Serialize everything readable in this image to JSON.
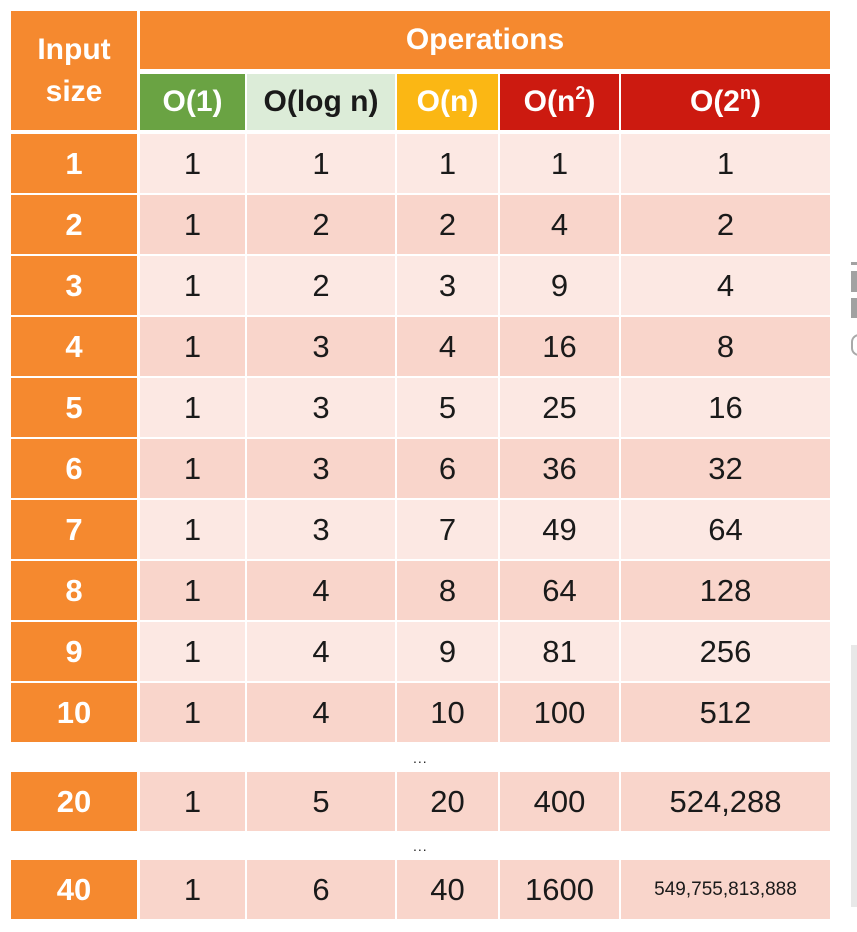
{
  "header": {
    "input_size_line1": "Input",
    "input_size_line2": "size",
    "operations": "Operations",
    "columns": [
      {
        "base": "O(1)",
        "sup": "",
        "tail": "",
        "bg": "#6aa343",
        "fg": "#ffffff"
      },
      {
        "base": "O(log n)",
        "sup": "",
        "tail": "",
        "bg": "#dcecd8",
        "fg": "#1a1a1a"
      },
      {
        "base": "O(n)",
        "sup": "",
        "tail": "",
        "bg": "#fbb714",
        "fg": "#ffffff"
      },
      {
        "base": "O(n",
        "sup": "2",
        "tail": ")",
        "bg": "#cc1a10",
        "fg": "#ffffff"
      },
      {
        "base": "O(2",
        "sup": "n",
        "tail": ")",
        "bg": "#cc1a10",
        "fg": "#ffffff"
      }
    ]
  },
  "rows": [
    {
      "n": "1",
      "values": [
        "1",
        "1",
        "1",
        "1",
        "1"
      ]
    },
    {
      "n": "2",
      "values": [
        "1",
        "2",
        "2",
        "4",
        "2"
      ]
    },
    {
      "n": "3",
      "values": [
        "1",
        "2",
        "3",
        "9",
        "4"
      ]
    },
    {
      "n": "4",
      "values": [
        "1",
        "3",
        "4",
        "16",
        "8"
      ]
    },
    {
      "n": "5",
      "values": [
        "1",
        "3",
        "5",
        "25",
        "16"
      ]
    },
    {
      "n": "6",
      "values": [
        "1",
        "3",
        "6",
        "36",
        "32"
      ]
    },
    {
      "n": "7",
      "values": [
        "1",
        "3",
        "7",
        "49",
        "64"
      ]
    },
    {
      "n": "8",
      "values": [
        "1",
        "4",
        "8",
        "64",
        "128"
      ]
    },
    {
      "n": "9",
      "values": [
        "1",
        "4",
        "9",
        "81",
        "256"
      ]
    },
    {
      "n": "10",
      "values": [
        "1",
        "4",
        "10",
        "100",
        "512"
      ]
    }
  ],
  "separator": "...",
  "extra_rows": [
    {
      "n": "20",
      "values": [
        "1",
        "5",
        "20",
        "400",
        "524,288"
      ]
    },
    {
      "n": "40",
      "values": [
        "1",
        "6",
        "40",
        "1600",
        "549,755,813,888"
      ]
    }
  ],
  "colors": {
    "side": "#f5892f",
    "header_band": "#f5892f",
    "row_light": "#fce8e3",
    "row_dark": "#f9d5cb"
  }
}
